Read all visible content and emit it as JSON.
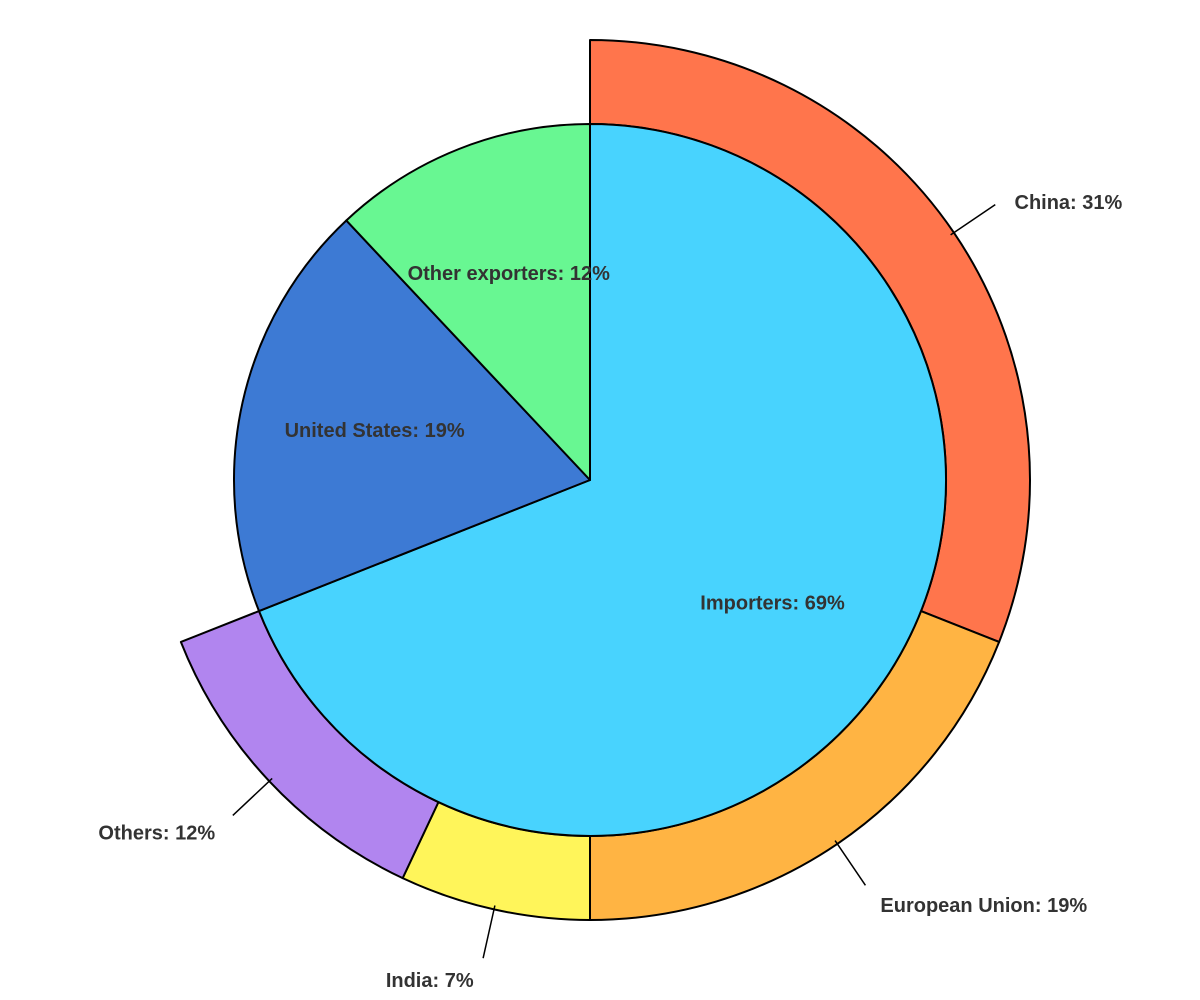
{
  "chart_data": {
    "type": "pie",
    "title": "",
    "inner": {
      "slices": [
        {
          "label": "Importers",
          "value": 69,
          "color": "#48D3FE",
          "text": "Importers: 69%"
        },
        {
          "label": "United States",
          "value": 19,
          "color": "#3D7AD4",
          "text": "United States: 19%"
        },
        {
          "label": "Other exporters",
          "value": 12,
          "color": "#68F792",
          "text": "Other exporters: 12%"
        }
      ]
    },
    "outer": {
      "slices": [
        {
          "label": "China",
          "value": 31,
          "color": "#FF754C",
          "text": "China: 31%"
        },
        {
          "label": "European Union",
          "value": 19,
          "color": "#FFB443",
          "text": "European Union: 19%"
        },
        {
          "label": "India",
          "value": 7,
          "color": "#FFF55A",
          "text": "India: 7%"
        },
        {
          "label": "Others",
          "value": 12,
          "color": "#B185EF",
          "text": "Others: 12%"
        }
      ]
    }
  }
}
